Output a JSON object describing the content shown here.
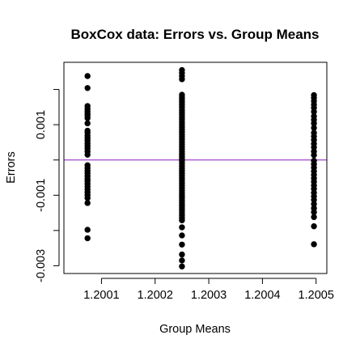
{
  "chart_data": {
    "type": "scatter",
    "title": "BoxCox data: Errors vs. Group Means",
    "xlabel": "Group Means",
    "ylabel": "Errors",
    "xlim": [
      1.20003,
      1.20052
    ],
    "ylim": [
      -0.00322,
      0.00277
    ],
    "xticks": [
      1.2001,
      1.2002,
      1.2003,
      1.2004,
      1.2005
    ],
    "xtick_labels": [
      "1.2001",
      "1.2002",
      "1.2003",
      "1.2004",
      "1.2005"
    ],
    "yticks": [
      -0.003,
      -0.002,
      -0.001,
      0.0,
      0.001,
      0.002
    ],
    "ytick_labels": [
      "-0.003",
      "",
      "-0.001",
      "",
      "0.001",
      ""
    ],
    "hline": {
      "y": 0.0,
      "color": "#9b30c8"
    },
    "point_color": "#000000",
    "grid": false,
    "legend": "none",
    "groups": [
      {
        "x": 1.200074,
        "y": [
          0.00238,
          0.00204,
          0.00153,
          0.00146,
          0.00139,
          0.00132,
          0.00126,
          0.00119,
          0.00104,
          0.00083,
          0.00077,
          0.00069,
          0.00062,
          0.00055,
          0.00047,
          0.0004,
          0.00033,
          0.00024,
          0.00015,
          -0.00015,
          -0.00023,
          -0.00031,
          -0.00038,
          -0.00046,
          -0.00054,
          -0.0006,
          -0.00068,
          -0.00076,
          -0.00084,
          -0.00092,
          -0.001,
          -0.00108,
          -0.00122,
          -0.00198,
          -0.00222
        ]
      },
      {
        "x": 1.20025,
        "y": [
          0.00255,
          0.00247,
          0.00238,
          0.00229,
          0.00185,
          0.00178,
          0.00171,
          0.00164,
          0.00157,
          0.0015,
          0.00142,
          0.00135,
          0.00128,
          0.00121,
          0.00114,
          0.00107,
          0.001,
          0.00093,
          0.00086,
          0.00079,
          0.00072,
          0.00065,
          0.00058,
          0.00051,
          0.00044,
          0.00037,
          0.0003,
          0.00023,
          0.00016,
          9e-05,
          3e-05,
          -3e-05,
          -0.0001,
          -0.00017,
          -0.00024,
          -0.00031,
          -0.00038,
          -0.00045,
          -0.00052,
          -0.00059,
          -0.00066,
          -0.00073,
          -0.0008,
          -0.00087,
          -0.00094,
          -0.00101,
          -0.00108,
          -0.00115,
          -0.00122,
          -0.00129,
          -0.00136,
          -0.00143,
          -0.0015,
          -0.00157,
          -0.00164,
          -0.00171,
          -0.00191,
          -0.00214,
          -0.0024,
          -0.00268,
          -0.00285,
          -0.00302
        ]
      },
      {
        "x": 1.200496,
        "y": [
          0.00184,
          0.00176,
          0.00167,
          0.00157,
          0.00148,
          0.00137,
          0.00124,
          0.00114,
          0.00104,
          0.00091,
          0.00077,
          0.00067,
          0.00057,
          0.00046,
          0.00036,
          0.00024,
          0.00014,
          -2e-05,
          -0.00012,
          -0.00022,
          -0.00032,
          -0.00042,
          -0.00052,
          -0.00062,
          -0.00072,
          -0.00082,
          -0.00093,
          -0.00103,
          -0.00113,
          -0.00125,
          -0.00137,
          -0.00148,
          -0.00162,
          -0.00188,
          -0.00239
        ]
      }
    ]
  }
}
